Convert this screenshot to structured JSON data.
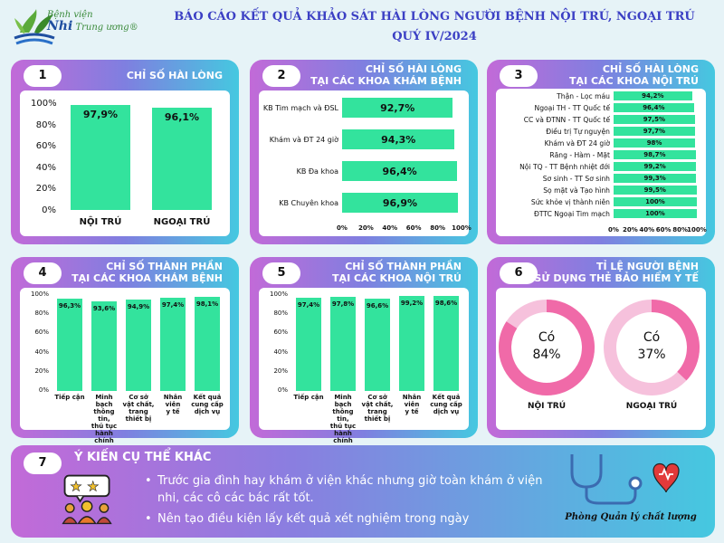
{
  "header": {
    "logo_line1": "Bệnh viện",
    "logo_line2_a": "Nhi",
    "logo_line2_b": " Trung ương®",
    "title_line1": "BÁO CÁO KẾT QUẢ KHẢO SÁT HÀI LÒNG NGƯỜI BỆNH NỘI TRÚ, NGOẠI TRÚ",
    "title_line2": "QUÝ IV/2024"
  },
  "panels": {
    "p1": {
      "num": "1",
      "title": "CHỈ SỐ HÀI LÒNG"
    },
    "p2": {
      "num": "2",
      "title_line1": "CHỈ SỐ HÀI LÒNG",
      "title_line2": "TẠI CÁC KHOA KHÁM BỆNH"
    },
    "p3": {
      "num": "3",
      "title_line1": "CHỈ SỐ HÀI LÒNG",
      "title_line2": "TẠI CÁC KHOA NỘI TRÚ"
    },
    "p4": {
      "num": "4",
      "title_line1": "CHỈ SỐ THÀNH PHẦN",
      "title_line2": "TẠI CÁC KHOA KHÁM BỆNH"
    },
    "p5": {
      "num": "5",
      "title_line1": "CHỈ SỐ THÀNH PHẦN",
      "title_line2": "TẠI CÁC KHOA NỘI TRÚ"
    },
    "p6": {
      "num": "6",
      "title_line1": "TỈ LỆ NGƯỜI BỆNH",
      "title_line2": "SỬ DỤNG THẺ BẢO HIỂM Y TẾ"
    },
    "p7": {
      "num": "7",
      "title": "Ý KIẾN CỤ THỂ KHÁC",
      "comments": [
        "Trước gia đình hay khám ở viện khác nhưng giờ toàn khám ở viện nhi, các cô các bác rất tốt.",
        "Nên tạo điều kiện lấy kết quả xét nghiệm trong ngày"
      ],
      "signature": "Phòng Quản lý chất lượng"
    }
  },
  "colors": {
    "bar": "#33e39d",
    "donut_pink": "#f06aa8",
    "donut_light": "#f6c1dc"
  },
  "chart_data": [
    {
      "type": "bar",
      "categories": [
        "NỘI TRÚ",
        "NGOẠI TRÚ"
      ],
      "values": [
        97.9,
        96.1
      ],
      "value_labels": [
        "97,9%",
        "96,1%"
      ],
      "ylim": [
        0,
        100
      ],
      "yticks": [
        "0%",
        "20%",
        "40%",
        "60%",
        "80%",
        "100%"
      ]
    },
    {
      "type": "bar",
      "orientation": "horizontal",
      "categories": [
        "KB Tim mạch và ĐSL",
        "Khám và ĐT 24 giờ",
        "KB Đa khoa",
        "KB Chuyên khoa"
      ],
      "values": [
        92.7,
        94.3,
        96.4,
        96.9
      ],
      "value_labels": [
        "92,7%",
        "94,3%",
        "96,4%",
        "96,9%"
      ],
      "xlim": [
        0,
        100
      ],
      "xticks": [
        "0%",
        "20%",
        "40%",
        "60%",
        "80%",
        "100%"
      ]
    },
    {
      "type": "bar",
      "orientation": "horizontal",
      "categories": [
        "Thận - Lọc máu",
        "Ngoại TH - TT Quốc tế",
        "CC và ĐTNN - TT Quốc tế",
        "Điều trị Tự nguyện",
        "Khám và ĐT 24 giờ",
        "Răng - Hàm - Mặt",
        "Nội TQ - TT Bệnh nhiệt đới",
        "Sơ sinh - TT Sơ sinh",
        "Sọ mặt và Tạo hình",
        "Sức khỏe vị thành niên",
        "ĐTTC Ngoại Tim mạch"
      ],
      "values": [
        94.2,
        96.4,
        97.5,
        97.7,
        98,
        98.7,
        99.2,
        99.3,
        99.5,
        100,
        100
      ],
      "value_labels": [
        "94,2%",
        "96,4%",
        "97,5%",
        "97,7%",
        "98%",
        "98,7%",
        "99,2%",
        "99,3%",
        "99,5%",
        "100%",
        "100%"
      ],
      "xlim": [
        0,
        100
      ],
      "xticks": [
        "0%",
        "20%",
        "40%",
        "60%",
        "80%",
        "100%"
      ]
    },
    {
      "type": "bar",
      "categories": [
        "Tiếp cận",
        "Minh bạch thông tin, thủ tục hành chính",
        "Cơ sở vật chất, trang thiết bị",
        "Nhân viên y tế",
        "Kết quả cung cấp dịch vụ"
      ],
      "category_lines": [
        [
          "Tiếp cận"
        ],
        [
          "Minh bạch",
          "thông tin,",
          "thủ tục",
          "hành chính"
        ],
        [
          "Cơ sở",
          "vật chất,",
          "trang",
          "thiết bị"
        ],
        [
          "Nhân viên",
          "y tế"
        ],
        [
          "Kết quả",
          "cung cấp",
          "dịch vụ"
        ]
      ],
      "values": [
        96.3,
        93.6,
        94.9,
        97.4,
        98.1
      ],
      "value_labels": [
        "96,3%",
        "93,6%",
        "94,9%",
        "97,4%",
        "98,1%"
      ],
      "ylim": [
        0,
        100
      ],
      "yticks": [
        "0%",
        "20%",
        "40%",
        "60%",
        "80%",
        "100%"
      ]
    },
    {
      "type": "bar",
      "categories": [
        "Tiếp cận",
        "Minh bạch thông tin, thủ tục hành chính",
        "Cơ sở vật chất, trang thiết bị",
        "Nhân viên y tế",
        "Kết quả cung cấp dịch vụ"
      ],
      "category_lines": [
        [
          "Tiếp cận"
        ],
        [
          "Minh bạch",
          "thông tin,",
          "thủ tục",
          "hành chính"
        ],
        [
          "Cơ sở",
          "vật chất,",
          "trang",
          "thiết bị"
        ],
        [
          "Nhân viên",
          "y tế"
        ],
        [
          "Kết quả",
          "cung cấp",
          "dịch vụ"
        ]
      ],
      "values": [
        97.4,
        97.8,
        96.6,
        99.2,
        98.6
      ],
      "value_labels": [
        "97,4%",
        "97,8%",
        "96,6%",
        "99,2%",
        "98,6%"
      ],
      "ylim": [
        0,
        100
      ],
      "yticks": [
        "0%",
        "20%",
        "40%",
        "60%",
        "80%",
        "100%"
      ]
    },
    {
      "type": "pie",
      "style": "donut",
      "charts": [
        {
          "name": "NỘI TRÚ",
          "center_label": "Có",
          "value": 84,
          "value_label": "84%"
        },
        {
          "name": "NGOẠI TRÚ",
          "center_label": "Có",
          "value": 37,
          "value_label": "37%"
        }
      ]
    }
  ]
}
